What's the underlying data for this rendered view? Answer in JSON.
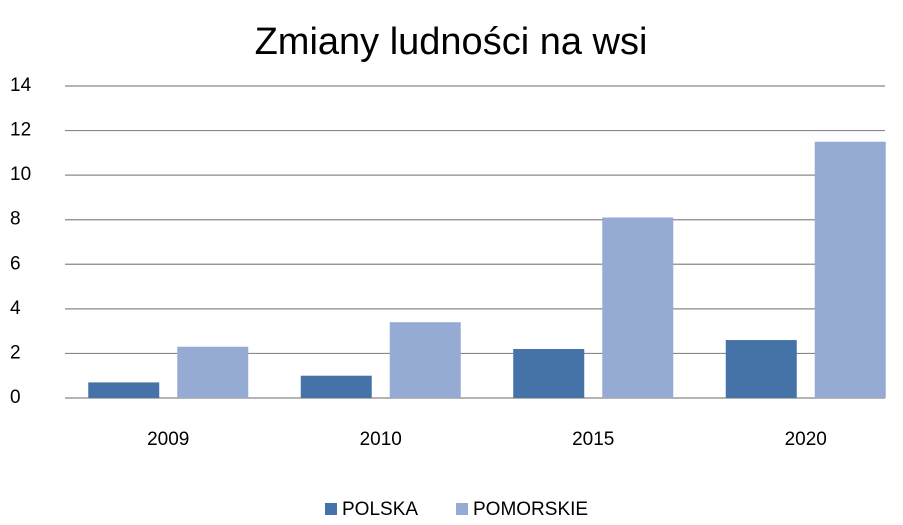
{
  "chart_data": {
    "type": "bar",
    "title": "Zmiany ludności na wsi",
    "categories": [
      "2009",
      "2010",
      "2015",
      "2020"
    ],
    "series": [
      {
        "name": "POLSKA",
        "color": "#4572a7",
        "values": [
          0.7,
          1.0,
          2.2,
          2.6
        ]
      },
      {
        "name": "POMORSKIE",
        "color": "#95abd3",
        "values": [
          2.3,
          3.4,
          8.1,
          11.5
        ]
      }
    ],
    "ylim": [
      0,
      14
    ],
    "yticks": [
      0,
      2,
      4,
      6,
      8,
      10,
      12,
      14
    ],
    "grid": true,
    "legend": "bottom"
  }
}
